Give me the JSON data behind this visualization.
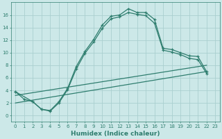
{
  "xlabel": "Humidex (Indice chaleur)",
  "background_color": "#cce8e8",
  "grid_color": "#aacfcf",
  "line_color": "#2e7d6e",
  "xlim": [
    -0.5,
    23.5
  ],
  "ylim": [
    -1,
    18
  ],
  "xticks": [
    0,
    1,
    2,
    3,
    4,
    5,
    6,
    7,
    8,
    9,
    10,
    11,
    12,
    13,
    14,
    15,
    16,
    17,
    18,
    19,
    20,
    21,
    22,
    23
  ],
  "yticks": [
    0,
    2,
    4,
    6,
    8,
    10,
    12,
    14,
    16
  ],
  "curve1_x": [
    0,
    1,
    2,
    3,
    4,
    5,
    6,
    7,
    8,
    9,
    10,
    11,
    12,
    13,
    14,
    15,
    16,
    17,
    18,
    19,
    20,
    21,
    22
  ],
  "curve1_y": [
    3.8,
    2.6,
    2.2,
    1.0,
    0.8,
    2.2,
    4.3,
    7.8,
    10.2,
    12.1,
    14.4,
    15.8,
    16.0,
    17.0,
    16.4,
    16.4,
    15.3,
    10.7,
    10.5,
    10.0,
    9.5,
    9.4,
    7.0
  ],
  "curve2_x": [
    0,
    2,
    3,
    4,
    5,
    6,
    7,
    8,
    9,
    10,
    11,
    12,
    13,
    14,
    15,
    16,
    17,
    18,
    19,
    20,
    21,
    22
  ],
  "curve2_y": [
    3.8,
    2.2,
    1.0,
    0.7,
    2.0,
    4.1,
    7.4,
    9.9,
    11.7,
    13.9,
    15.4,
    15.7,
    16.4,
    16.1,
    15.9,
    14.7,
    10.4,
    10.1,
    9.7,
    9.1,
    8.9,
    6.7
  ],
  "line1_x": [
    0,
    22
  ],
  "line1_y": [
    2.0,
    7.0
  ],
  "line2_x": [
    0,
    22
  ],
  "line2_y": [
    3.2,
    8.0
  ]
}
